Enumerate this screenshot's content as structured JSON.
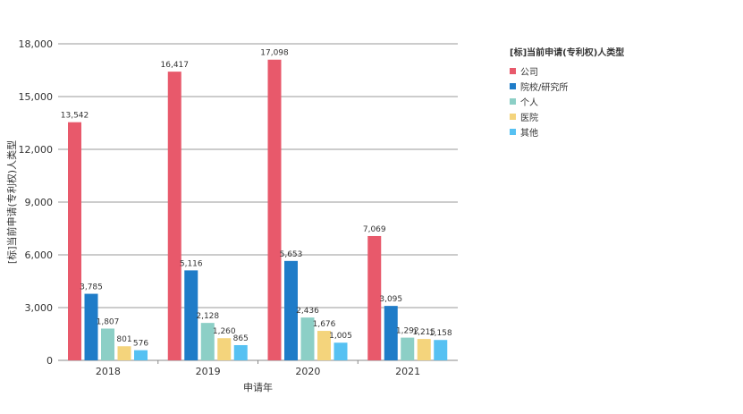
{
  "chart_data": {
    "type": "bar",
    "title": "",
    "xlabel": "申请年",
    "ylabel": "[标]当前申请(专利权)人类型",
    "ylim": [
      0,
      18000
    ],
    "yticks": [
      "0",
      "3,000",
      "6,000",
      "9,000",
      "12,000",
      "15,000",
      "18,000"
    ],
    "ytick_values": [
      0,
      3000,
      6000,
      9000,
      12000,
      15000,
      18000
    ],
    "grid": true,
    "legend_title": "[标]当前申请(专利权)人类型",
    "legend_position": "right",
    "categories": [
      "2018",
      "2019",
      "2020",
      "2021"
    ],
    "series": [
      {
        "name": "公司",
        "color": "#e8596b",
        "values": [
          13542,
          16417,
          17098,
          7069
        ],
        "labels": [
          "13,542",
          "16,417",
          "17,098",
          "7,069"
        ]
      },
      {
        "name": "院校/研究所",
        "color": "#1f7cc8",
        "values": [
          3785,
          5116,
          5653,
          3095
        ],
        "labels": [
          "3,785",
          "5,116",
          "5,653",
          "3,095"
        ]
      },
      {
        "name": "个人",
        "color": "#8ccfc6",
        "values": [
          1807,
          2128,
          2436,
          1292
        ],
        "labels": [
          "1,807",
          "2,128",
          "2,436",
          "1,292"
        ]
      },
      {
        "name": "医院",
        "color": "#f4d47c",
        "values": [
          801,
          1260,
          1676,
          1215
        ],
        "labels": [
          "801",
          "1,260",
          "1,676",
          "1,215"
        ]
      },
      {
        "name": "其他",
        "color": "#56c1f2",
        "values": [
          576,
          865,
          1005,
          1158
        ],
        "labels": [
          "576",
          "865",
          "1,005",
          "1,158"
        ]
      }
    ]
  }
}
